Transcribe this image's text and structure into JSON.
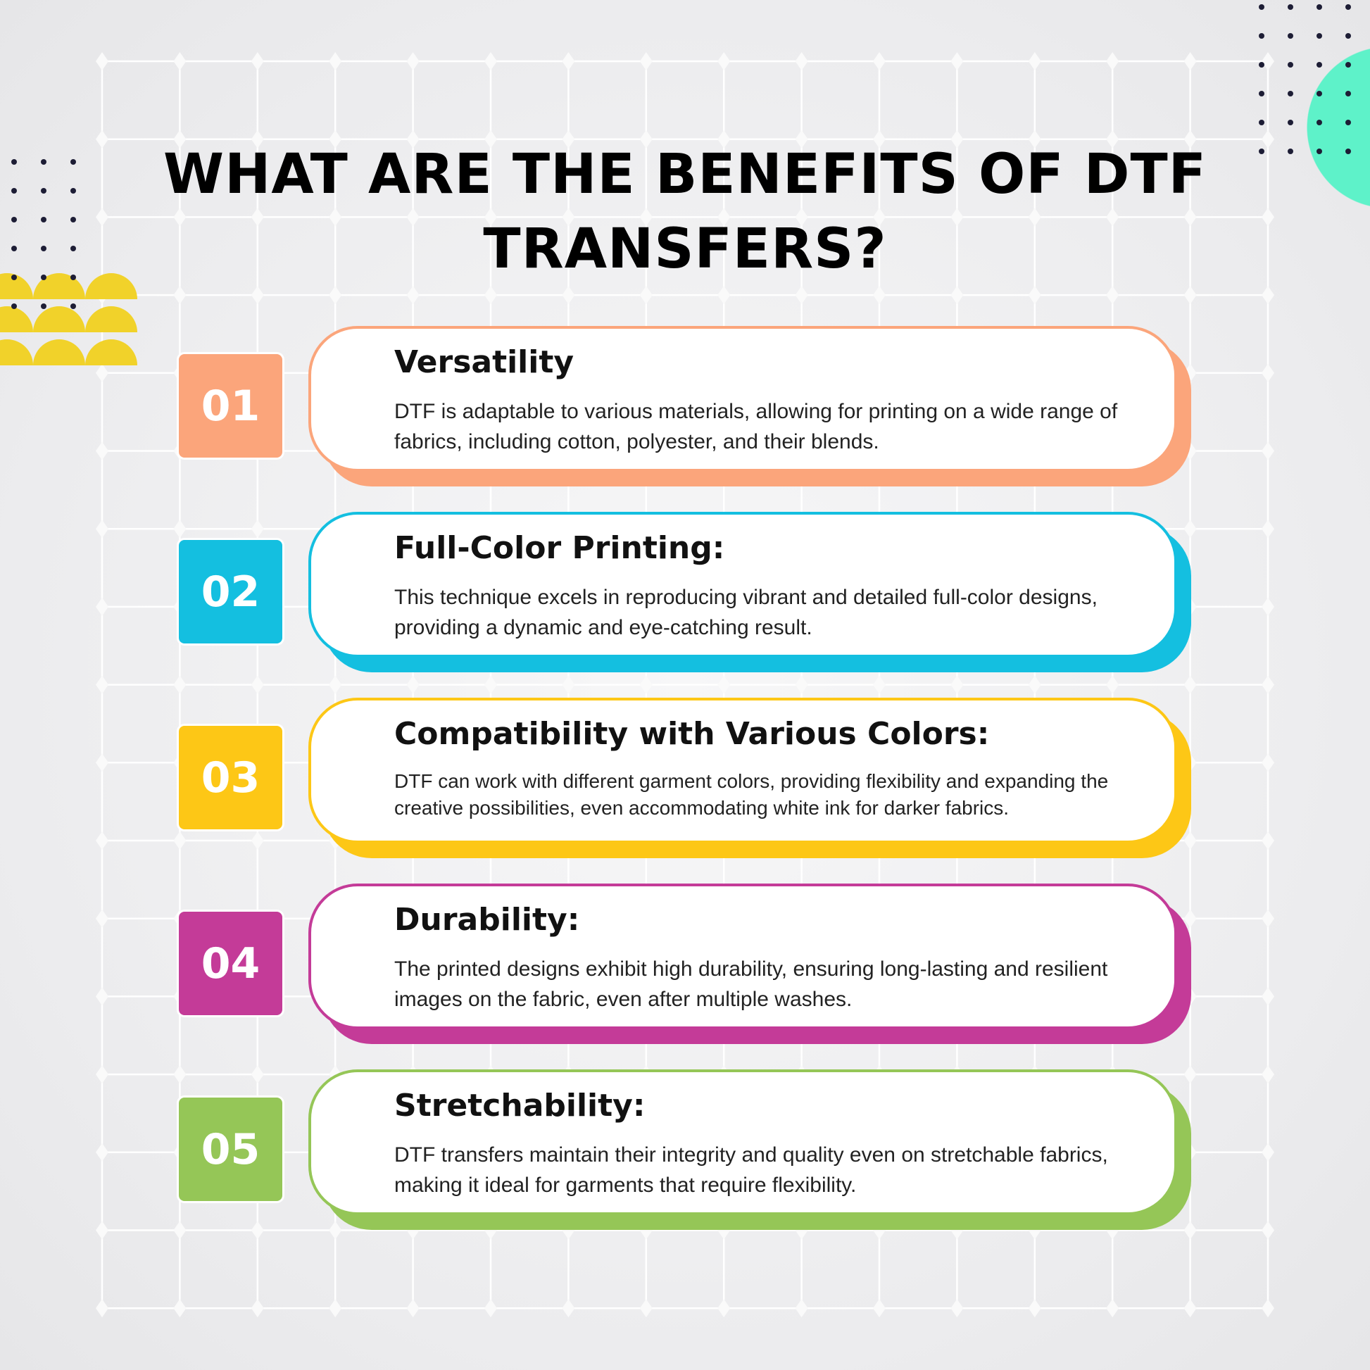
{
  "title": {
    "line1": "WHAT ARE THE BENEFITS OF DTF",
    "line2": "TRANSFERS?"
  },
  "colors": {
    "orange": "#fba57b",
    "cyan": "#14bfe0",
    "yellow": "#fdc716",
    "magenta": "#c43b98",
    "green": "#95c657",
    "teal": "#5ef2c9",
    "yellow_shapes": "#f1d22a"
  },
  "items": [
    {
      "number": "01",
      "heading": "Versatility",
      "body": "DTF is adaptable to various materials, allowing for printing on a wide range of fabrics, including cotton, polyester, and their blends."
    },
    {
      "number": "02",
      "heading": "Full-Color Printing:",
      "body": "This technique excels in reproducing vibrant and detailed full-color designs, providing a dynamic and eye-catching result."
    },
    {
      "number": "03",
      "heading": "Compatibility with Various Colors:",
      "body": "DTF can work with different garment colors, providing flexibility and expanding the creative possibilities, even accommodating white ink for darker fabrics."
    },
    {
      "number": "04",
      "heading": "Durability:",
      "body": "The printed designs exhibit high durability, ensuring long-lasting and resilient images on the fabric, even after multiple washes."
    },
    {
      "number": "05",
      "heading": "Stretchability:",
      "body": "DTF transfers maintain their integrity and quality even on stretchable fabrics, making it ideal for garments that require flexibility."
    }
  ]
}
